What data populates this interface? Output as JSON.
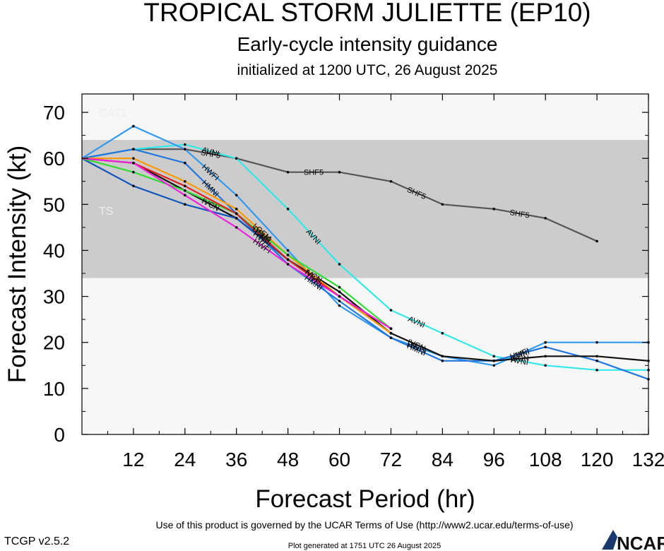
{
  "header": {
    "title": "TROPICAL STORM JULIETTE (EP10)",
    "subtitle": "Early-cycle intensity guidance",
    "init": "initialized at 1200 UTC, 26 August 2025"
  },
  "footer": {
    "terms": "Use of this product is governed by the UCAR Terms of Use (http://www2.ucar.edu/terms-of-use)",
    "generated": "Plot generated at 1751 UTC   26 August 2025",
    "version": "TCGP v2.5.2",
    "logo_text": "NCAR"
  },
  "colors": {
    "band_light": "#f7f7f7",
    "band_storm": "#cccccc",
    "point": "#000000"
  },
  "chart_data": {
    "type": "line",
    "xlabel": "Forecast Period (hr)",
    "ylabel": "Forecast Intensity (kt)",
    "xlim": [
      0,
      132
    ],
    "ylim": [
      0,
      74
    ],
    "xticks": [
      12,
      24,
      36,
      48,
      60,
      72,
      84,
      96,
      108,
      120,
      132
    ],
    "yticks": [
      0,
      10,
      20,
      30,
      40,
      50,
      60,
      70
    ],
    "bands": [
      {
        "label": "CAT1",
        "from": 64,
        "to": 74
      },
      {
        "label": "TS",
        "from": 34,
        "to": 64
      }
    ],
    "series": [
      {
        "name": "SHF5",
        "color": "#555555",
        "x": [
          0,
          12,
          24,
          36,
          48,
          60,
          72,
          84,
          96,
          108,
          120
        ],
        "y": [
          60,
          62,
          62,
          60,
          57,
          57,
          55,
          50,
          49,
          47,
          42
        ]
      },
      {
        "name": "AVNI",
        "color": "#33e8e8",
        "x": [
          0,
          12,
          24,
          36,
          48,
          60,
          72,
          84,
          96,
          108,
          120,
          132
        ],
        "y": [
          60,
          62,
          63,
          60,
          49,
          37,
          27,
          22,
          17,
          15,
          14,
          14
        ]
      },
      {
        "name": "HWFI",
        "color": "#3399ee",
        "x": [
          0,
          12,
          24,
          36,
          48,
          60,
          72,
          84,
          96,
          108,
          120,
          132
        ],
        "y": [
          60,
          67,
          62,
          52,
          40,
          28,
          21,
          17,
          15,
          20,
          20,
          20
        ]
      },
      {
        "name": "HMNI",
        "color": "#2277dd",
        "x": [
          0,
          12,
          24,
          36,
          48,
          60,
          72,
          84,
          96,
          108,
          120,
          132
        ],
        "y": [
          60,
          62,
          59,
          48,
          37,
          29,
          21,
          16,
          16,
          19,
          16,
          12
        ]
      },
      {
        "name": "IVCN",
        "color": "#111111",
        "x": [
          0,
          12,
          24,
          36,
          48,
          60,
          72,
          84,
          96,
          108,
          120,
          132
        ],
        "y": [
          60,
          59,
          53,
          47,
          38,
          31,
          22,
          17,
          16,
          17,
          17,
          16
        ]
      },
      {
        "name": "HWFI",
        "color": "#1155bb",
        "x": [
          0,
          12,
          24,
          36,
          48,
          60,
          72
        ],
        "y": [
          60,
          54,
          50,
          47,
          38,
          30,
          22
        ]
      },
      {
        "name": "LGEM",
        "color": "#ff9900",
        "x": [
          0,
          12,
          24,
          36,
          48,
          60,
          72
        ],
        "y": [
          60,
          60,
          55,
          49,
          39,
          30,
          22
        ]
      },
      {
        "name": "DSHP",
        "color": "#33dd33",
        "x": [
          0,
          12,
          24,
          36,
          48,
          60,
          72
        ],
        "y": [
          60,
          57,
          53,
          48,
          39,
          32,
          23
        ]
      },
      {
        "name": "CTCI",
        "color": "#dd2222",
        "x": [
          0,
          12,
          24,
          36,
          48,
          60,
          72
        ],
        "y": [
          60,
          59,
          54,
          48,
          38,
          30,
          23
        ]
      },
      {
        "name": "HWFI",
        "color": "#ee22dd",
        "x": [
          0,
          12,
          24,
          36,
          48,
          60,
          72
        ],
        "y": [
          60,
          59,
          52,
          45,
          37,
          30,
          23
        ]
      }
    ]
  }
}
